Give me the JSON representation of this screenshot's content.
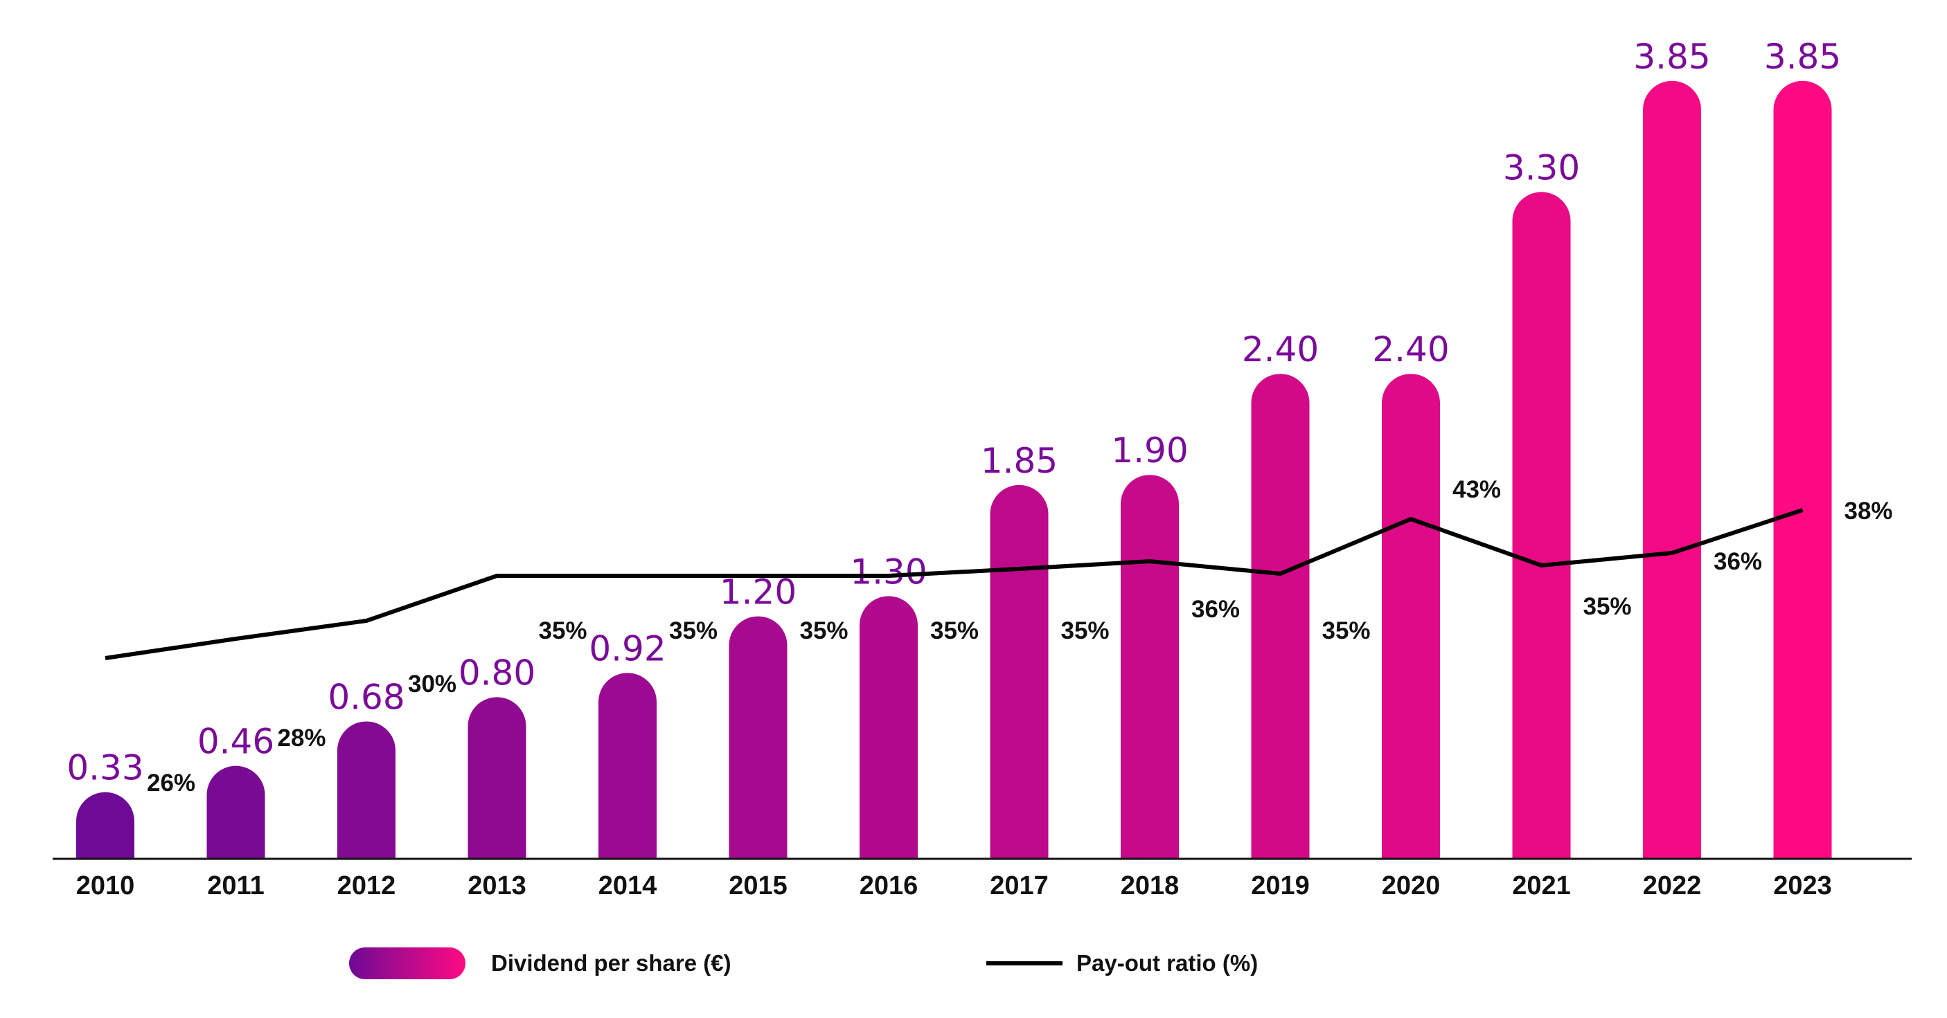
{
  "chart_data": {
    "type": "bar",
    "categories": [
      "2010",
      "2011",
      "2012",
      "2013",
      "2014",
      "2015",
      "2016",
      "2017",
      "2018",
      "2019",
      "2020",
      "2021",
      "2022",
      "2023"
    ],
    "series": [
      {
        "name": "Dividend per share (€)",
        "type": "bar",
        "values": [
          0.33,
          0.46,
          0.68,
          0.8,
          0.92,
          1.2,
          1.3,
          1.85,
          1.9,
          2.4,
          2.4,
          3.3,
          3.85,
          3.85
        ],
        "labels": [
          "0.33",
          "0.46",
          "0.68",
          "0.80",
          "0.92",
          "1.20",
          "1.30",
          "1.85",
          "1.90",
          "2.40",
          "2.40",
          "3.30",
          "3.85",
          "3.85"
        ],
        "color_start": "#6e0a96",
        "color_end": "#ff0a82"
      },
      {
        "name": "Pay-out ratio (%)",
        "type": "line",
        "values": [
          26,
          28,
          30,
          35,
          35,
          35,
          35,
          35,
          36,
          35,
          43,
          35,
          36,
          38
        ],
        "labels": [
          "26%",
          "28%",
          "30%",
          "35%",
          "35%",
          "35%",
          "35%",
          "35%",
          "36%",
          "35%",
          "43%",
          "35%",
          "36%",
          "38%"
        ],
        "color": "#000000"
      }
    ],
    "xlabel": "",
    "ylabel": "",
    "ylim": [
      0,
      4.1
    ],
    "grid": false,
    "legend": "bottom",
    "value_label_color": "#7a0a99"
  }
}
